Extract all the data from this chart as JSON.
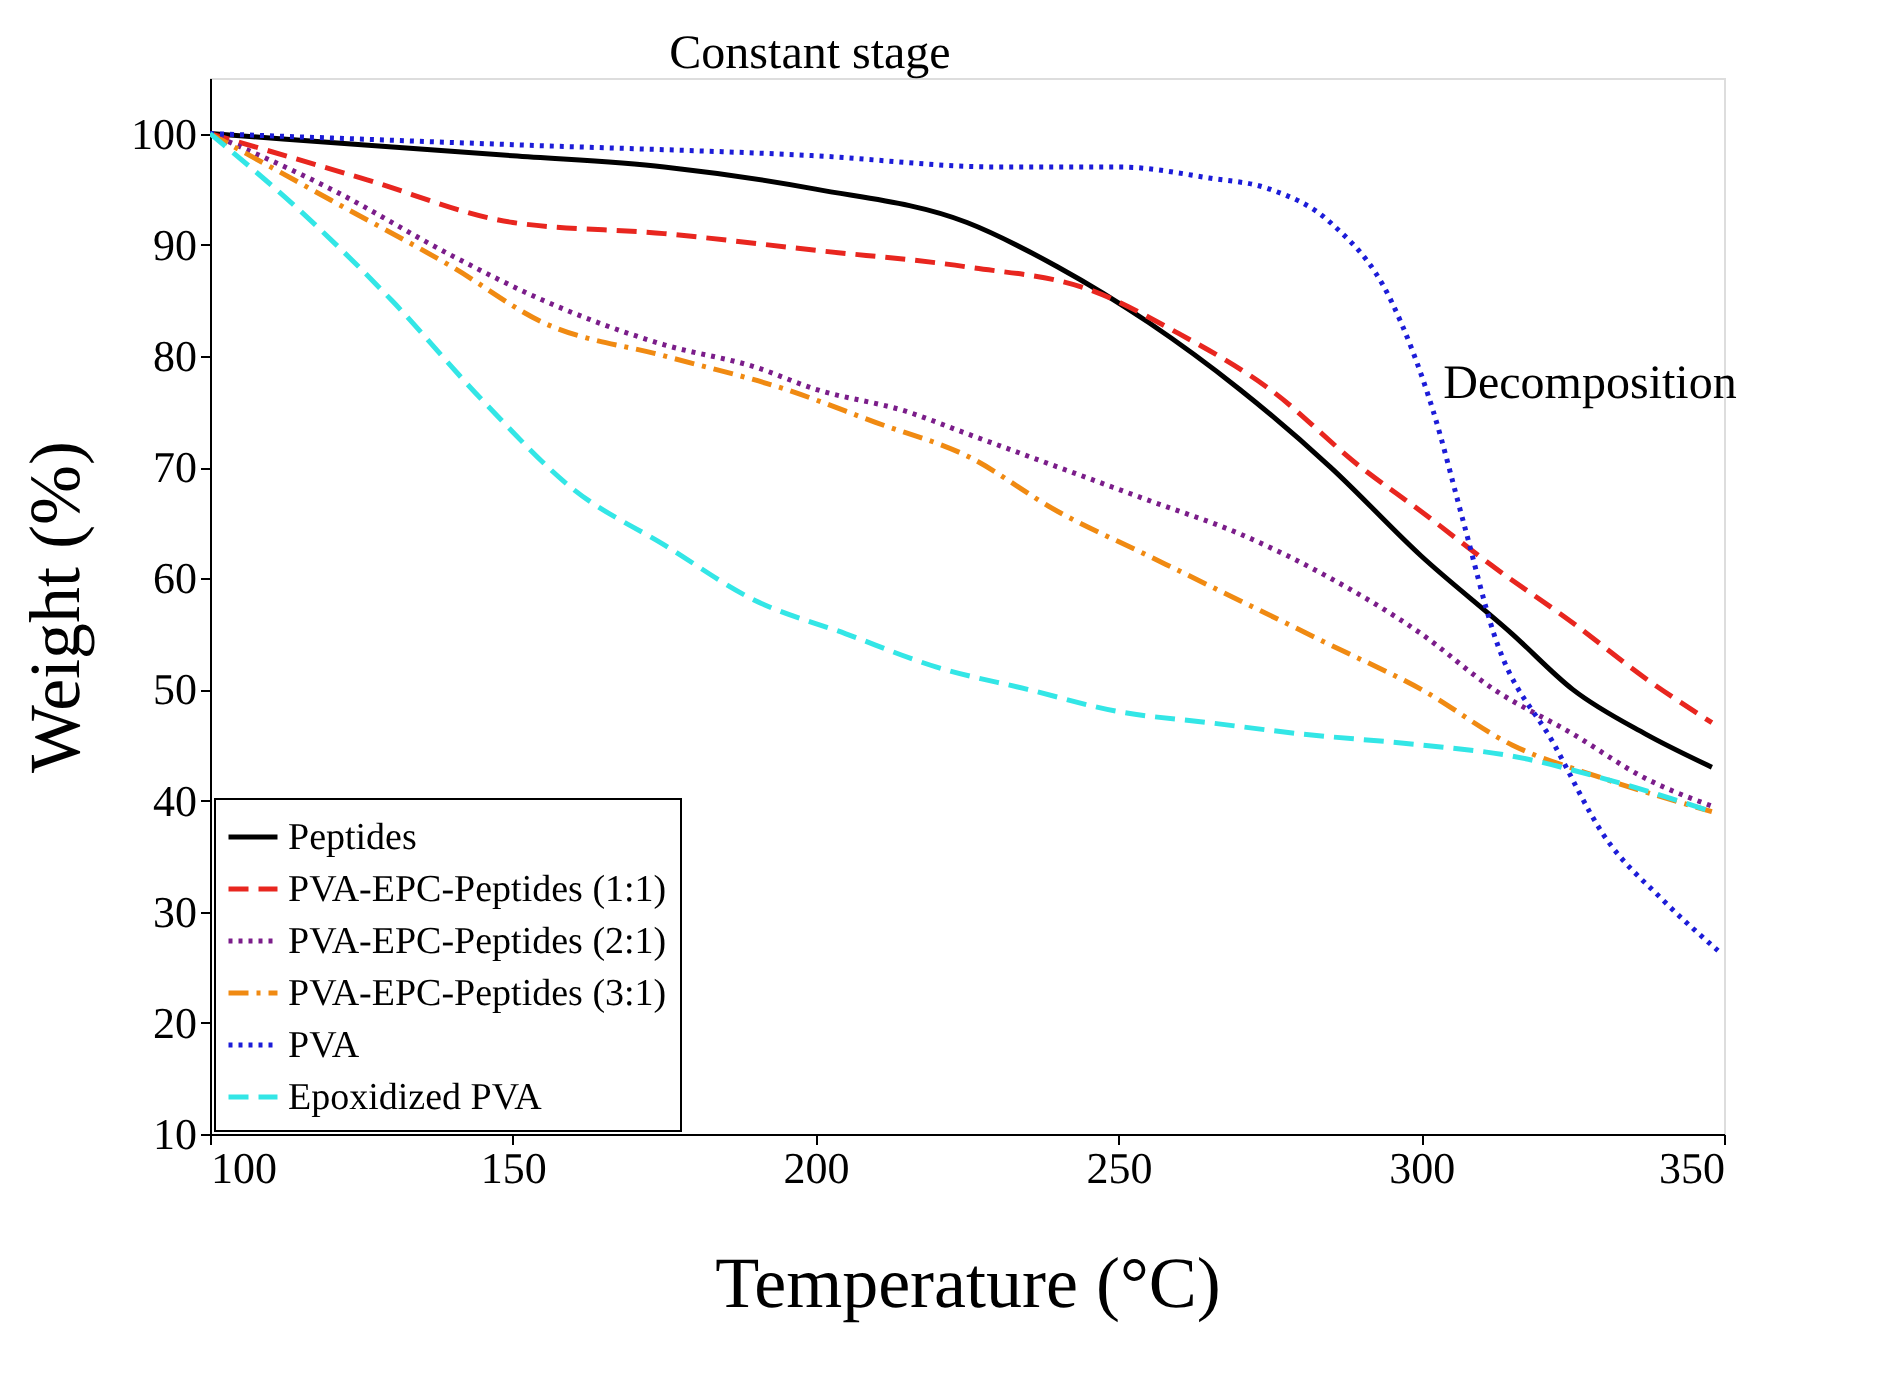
{
  "chart_data": {
    "type": "line",
    "xlabel": "Temperature (°C)",
    "ylabel": "Weight (%)",
    "xlim": [
      100,
      350
    ],
    "ylim": [
      10,
      105
    ],
    "xticks": [
      100,
      150,
      200,
      250,
      300,
      350
    ],
    "yticks": [
      10,
      20,
      30,
      40,
      50,
      60,
      70,
      80,
      90,
      100
    ],
    "grid": false,
    "legend": "bottom left",
    "annotations": [
      "Constant stage",
      "Decomposition"
    ],
    "series": [
      {
        "name": "Peptides",
        "color": "#000000",
        "line_style": "solid",
        "x": [
          100,
          125,
          150,
          175,
          200,
          225,
          240,
          255,
          270,
          285,
          300,
          315,
          325,
          337,
          348
        ],
        "values": [
          100,
          99,
          98,
          97,
          95,
          92,
          88,
          83,
          77,
          70,
          62,
          55,
          50,
          46,
          43
        ]
      },
      {
        "name": "PVA-EPC-Peptides (1:1)",
        "color": "#e8261f",
        "line_style": "dashed",
        "x": [
          100,
          125,
          150,
          175,
          200,
          225,
          245,
          260,
          275,
          290,
          300,
          312,
          325,
          337,
          348
        ],
        "values": [
          100,
          96,
          92,
          91,
          89.5,
          88,
          86,
          82,
          77,
          70,
          66,
          61,
          56,
          51,
          47
        ]
      },
      {
        "name": "PVA-EPC-Peptides (2:1)",
        "color": "#7b1d8a",
        "line_style": "dotted",
        "x": [
          100,
          120,
          140,
          155,
          175,
          190,
          200,
          215,
          225,
          240,
          255,
          270,
          285,
          300,
          312,
          325,
          337,
          348
        ],
        "values": [
          100,
          95,
          89,
          85,
          81,
          79,
          77,
          75,
          73,
          70,
          67,
          64,
          60,
          55,
          50,
          46,
          42,
          39.5
        ]
      },
      {
        "name": "PVA-EPC-Peptides (3:1)",
        "color": "#f08a12",
        "line_style": "dashdot",
        "x": [
          100,
          120,
          140,
          155,
          175,
          195,
          210,
          225,
          240,
          255,
          270,
          285,
          300,
          315,
          330,
          348
        ],
        "values": [
          100,
          94,
          88,
          83,
          80,
          77,
          74,
          71,
          66,
          62,
          58,
          54,
          50,
          45,
          42,
          39
        ]
      },
      {
        "name": "PVA",
        "color": "#1c1cd8",
        "line_style": "dotted",
        "x": [
          100,
          150,
          200,
          230,
          250,
          265,
          275,
          285,
          295,
          302,
          307,
          312,
          322,
          330,
          340,
          349
        ],
        "values": [
          100,
          99,
          98,
          97,
          97,
          96,
          95,
          92,
          85,
          75,
          65,
          55,
          45,
          37,
          31,
          26.5
        ]
      },
      {
        "name": "Epoxidized PVA",
        "color": "#33e6e6",
        "line_style": "dashed",
        "x": [
          100,
          115,
          130,
          145,
          160,
          175,
          190,
          205,
          220,
          235,
          250,
          265,
          280,
          300,
          315,
          330,
          348
        ],
        "values": [
          100,
          93,
          85,
          76,
          68,
          63,
          58,
          55,
          52,
          50,
          48,
          47,
          46,
          45,
          44,
          42,
          39
        ]
      }
    ]
  }
}
